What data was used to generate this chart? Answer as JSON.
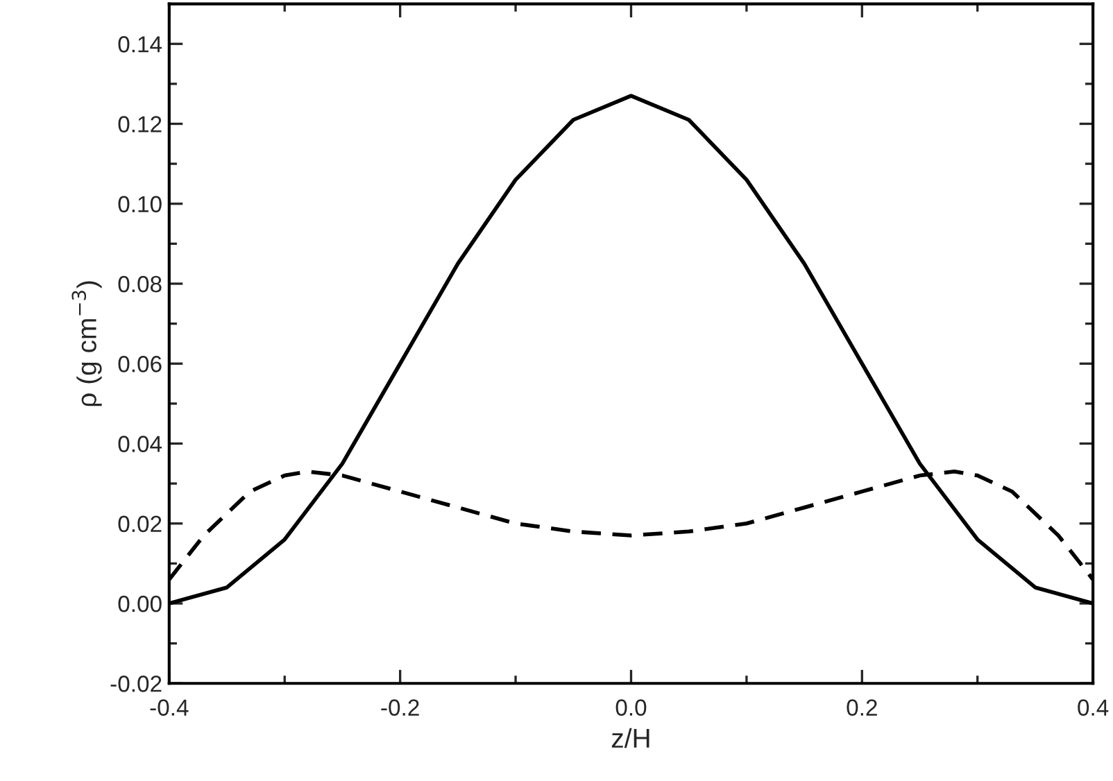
{
  "chart_data": {
    "type": "line",
    "xlabel": "z/H",
    "ylabel": "ρ (g cm$^{−3}$)",
    "xlim": [
      -0.4,
      0.4
    ],
    "xticks": [
      {
        "value": -0.4,
        "label": "-0.4"
      },
      {
        "value": -0.2,
        "label": "-0.2"
      },
      {
        "value": 0.0,
        "label": "0.0"
      },
      {
        "value": 0.2,
        "label": "0.2"
      },
      {
        "value": 0.4,
        "label": "0.4"
      }
    ],
    "ylim": [
      -0.02,
      0.15
    ],
    "yticks": [
      {
        "value": -0.02,
        "label": "-0.02"
      },
      {
        "value": 0.0,
        "label": "0.00"
      },
      {
        "value": 0.02,
        "label": "0.02"
      },
      {
        "value": 0.04,
        "label": "0.04"
      },
      {
        "value": 0.06,
        "label": "0.06"
      },
      {
        "value": 0.08,
        "label": "0.08"
      },
      {
        "value": 0.1,
        "label": "0.10"
      },
      {
        "value": 0.12,
        "label": "0.12"
      },
      {
        "value": 0.14,
        "label": "0.14"
      }
    ],
    "grid": false,
    "legend": false,
    "marker": "none",
    "series": [
      {
        "color": "#000000",
        "line_style": "solid",
        "x": [
          -0.4,
          -0.35,
          -0.3,
          -0.25,
          -0.2,
          -0.15,
          -0.1,
          -0.05,
          0.0,
          0.05,
          0.1,
          0.15,
          0.2,
          0.25,
          0.3,
          0.35,
          0.4
        ],
        "values": [
          0.0,
          0.004,
          0.016,
          0.035,
          0.06,
          0.085,
          0.106,
          0.121,
          0.127,
          0.121,
          0.106,
          0.085,
          0.06,
          0.035,
          0.016,
          0.004,
          0.0
        ]
      },
      {
        "color": "#000000",
        "line_style": "dashed",
        "x": [
          -0.4,
          -0.37,
          -0.33,
          -0.3,
          -0.28,
          -0.25,
          -0.2,
          -0.15,
          -0.1,
          -0.05,
          0.0,
          0.05,
          0.1,
          0.15,
          0.2,
          0.25,
          0.28,
          0.3,
          0.33,
          0.37,
          0.4
        ],
        "values": [
          0.006,
          0.017,
          0.028,
          0.032,
          0.033,
          0.032,
          0.028,
          0.024,
          0.02,
          0.018,
          0.017,
          0.018,
          0.02,
          0.024,
          0.028,
          0.032,
          0.033,
          0.032,
          0.028,
          0.017,
          0.006
        ]
      }
    ]
  }
}
